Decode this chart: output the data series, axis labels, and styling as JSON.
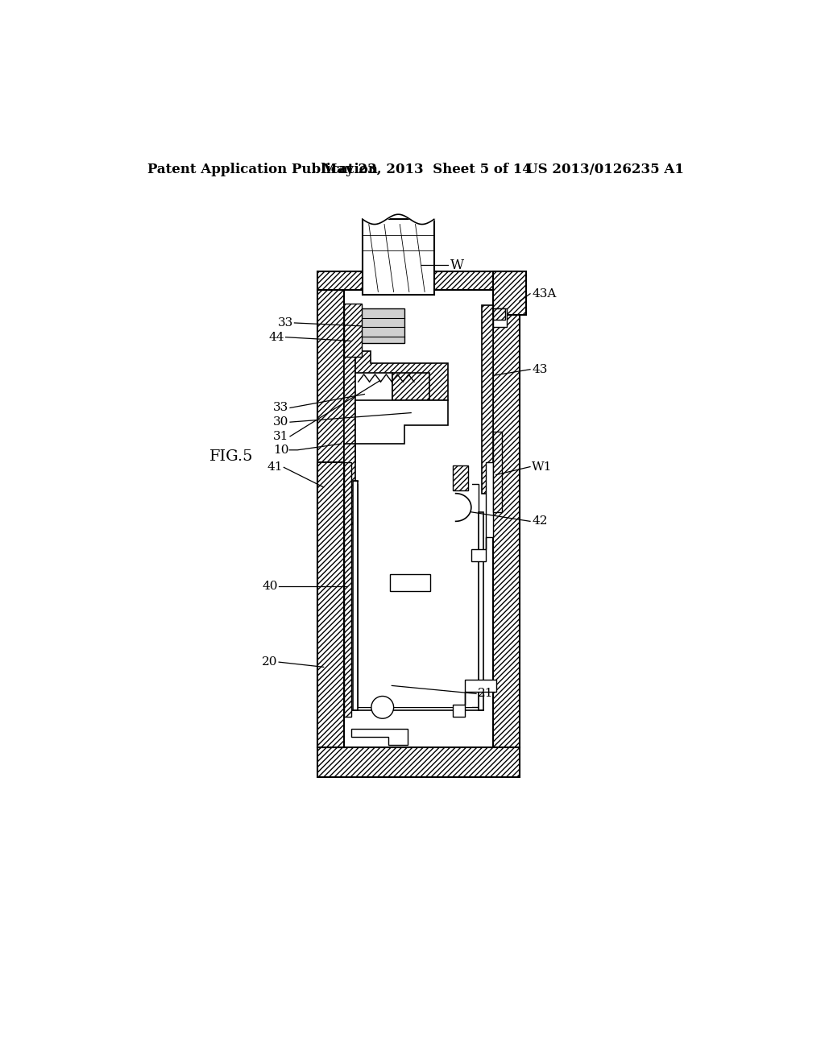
{
  "title_left": "Patent Application Publication",
  "title_mid": "May 23, 2013  Sheet 5 of 14",
  "title_right": "US 2013/0126235 A1",
  "fig_label": "FIG.5",
  "bg": "#ffffff"
}
